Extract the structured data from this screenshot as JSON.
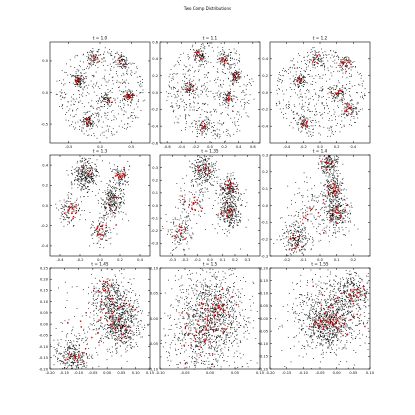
{
  "figure": {
    "title": "Two Comp Distributions"
  },
  "chart_data": [
    {
      "type": "scatter",
      "title": "t = 1.0",
      "xlim": [
        -0.8,
        0.8
      ],
      "ylim": [
        -0.8,
        0.8
      ],
      "xticks": [
        -0.5,
        0.0,
        0.5
      ],
      "yticks": [
        -0.5,
        0.0,
        0.5
      ],
      "tick_format": 1,
      "series": [
        {
          "color": "#000000"
        },
        {
          "color": "#dd0000"
        }
      ]
    },
    {
      "type": "scatter",
      "title": "t = 1.1",
      "xlim": [
        -0.7,
        0.7
      ],
      "ylim": [
        -0.6,
        0.6
      ],
      "xticks": [
        -0.6,
        -0.4,
        -0.2,
        0.0,
        0.2,
        0.4,
        0.6
      ],
      "yticks": [
        -0.6,
        -0.4,
        -0.2,
        0.0,
        0.2,
        0.4,
        0.6
      ],
      "tick_format": 1,
      "series": [
        {
          "color": "#000000"
        },
        {
          "color": "#dd0000"
        }
      ]
    },
    {
      "type": "scatter",
      "title": "t = 1.2",
      "xlim": [
        -0.6,
        0.6
      ],
      "ylim": [
        -0.6,
        0.6
      ],
      "xticks": [
        -0.4,
        -0.2,
        0.0,
        0.2,
        0.4
      ],
      "yticks": [
        -0.4,
        -0.2,
        0.0,
        0.2,
        0.4
      ],
      "tick_format": 1,
      "series": [
        {
          "color": "#000000"
        },
        {
          "color": "#dd0000"
        }
      ]
    },
    {
      "type": "scatter",
      "title": "t = 1.3",
      "xlim": [
        -0.5,
        0.5
      ],
      "ylim": [
        -0.5,
        0.5
      ],
      "xticks": [
        -0.4,
        -0.2,
        0.0,
        0.2,
        0.4
      ],
      "yticks": [
        -0.4,
        -0.2,
        0.0,
        0.2,
        0.4
      ],
      "tick_format": 1,
      "series": [
        {
          "color": "#000000"
        },
        {
          "color": "#dd0000"
        }
      ]
    },
    {
      "type": "scatter",
      "title": "t = 1.35",
      "xlim": [
        -0.4,
        0.4
      ],
      "ylim": [
        -0.4,
        0.4
      ],
      "xticks": [
        -0.3,
        -0.2,
        -0.1,
        0.0,
        0.1,
        0.2,
        0.3
      ],
      "yticks": [
        -0.3,
        -0.2,
        -0.1,
        0.0,
        0.1,
        0.2,
        0.3
      ],
      "tick_format": 1,
      "series": [
        {
          "color": "#000000"
        },
        {
          "color": "#dd0000"
        }
      ]
    },
    {
      "type": "scatter",
      "title": "t = 1.4",
      "xlim": [
        -0.3,
        0.3
      ],
      "ylim": [
        -0.3,
        0.3
      ],
      "xticks": [
        -0.2,
        -0.1,
        0.0,
        0.1,
        0.2
      ],
      "yticks": [
        -0.3,
        -0.2,
        -0.1,
        0.0,
        0.1,
        0.2,
        0.3
      ],
      "tick_format": 1,
      "series": [
        {
          "color": "#000000"
        },
        {
          "color": "#dd0000"
        }
      ]
    },
    {
      "type": "scatter",
      "title": "t = 1.45",
      "xlim": [
        -0.2,
        0.15
      ],
      "ylim": [
        -0.2,
        0.25
      ],
      "xticks": [
        -0.2,
        -0.15,
        -0.1,
        -0.05,
        0.0,
        0.05,
        0.1,
        0.15
      ],
      "yticks": [
        -0.2,
        -0.15,
        -0.1,
        -0.05,
        0.0,
        0.05,
        0.1,
        0.15,
        0.2,
        0.25
      ],
      "tick_format": 2,
      "series": [
        {
          "color": "#000000"
        },
        {
          "color": "#dd0000"
        }
      ]
    },
    {
      "type": "scatter",
      "title": "t = 1.5",
      "xlim": [
        -0.1,
        0.1
      ],
      "ylim": [
        -0.1,
        0.1
      ],
      "xticks": [
        -0.1,
        -0.05,
        0.0,
        0.05,
        0.1
      ],
      "yticks": [
        -0.1,
        -0.05,
        0.0,
        0.05,
        0.1
      ],
      "tick_format": 2,
      "series": [
        {
          "color": "#000000"
        },
        {
          "color": "#dd0000"
        }
      ]
    },
    {
      "type": "scatter",
      "title": "t = 1.55",
      "xlim": [
        -0.2,
        0.1
      ],
      "ylim": [
        -0.2,
        0.2
      ],
      "xticks": [
        -0.2,
        -0.15,
        -0.1,
        -0.05,
        0.0,
        0.05,
        0.1
      ],
      "yticks": [
        -0.2,
        -0.15,
        -0.1,
        -0.05,
        0.0,
        0.05,
        0.1,
        0.15,
        0.2
      ],
      "tick_format": 2,
      "series": [
        {
          "color": "#000000"
        },
        {
          "color": "#dd0000"
        }
      ]
    }
  ]
}
